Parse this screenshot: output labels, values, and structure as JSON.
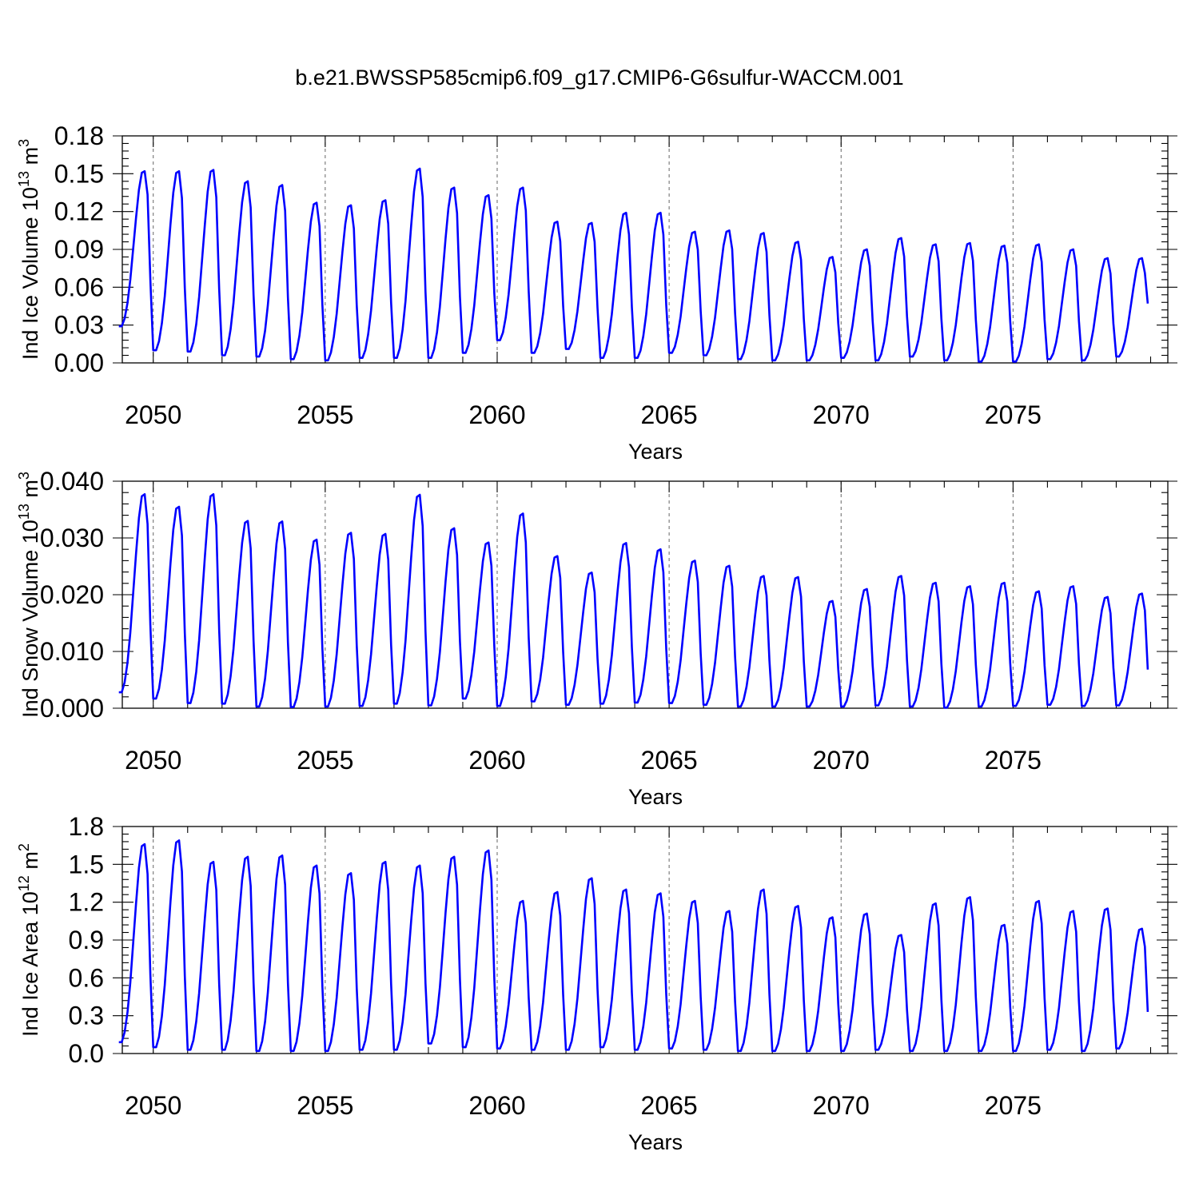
{
  "figure": {
    "title": "b.e21.BWSSP585cmip6.f09_g17.CMIP6-G6sulfur-WACCM.001"
  },
  "chart_data": [
    {
      "type": "line",
      "ylabel": "Ind Ice Volume 10",
      "ylabel_exponent": "13",
      "ylabel_unit": " m",
      "ylabel_unit_exponent": "3",
      "xlabel": "Years",
      "xlim": [
        2049.1,
        2079.5
      ],
      "ylim": [
        0,
        0.18
      ],
      "yticks": [
        "0.00",
        "0.03",
        "0.06",
        "0.09",
        "0.12",
        "0.15",
        "0.18"
      ],
      "xticks": [
        "2050",
        "2055",
        "2060",
        "2065",
        "2070",
        "2075"
      ],
      "year_gridlines": [
        2050,
        2055,
        2060,
        2065,
        2070,
        2075
      ],
      "color": "#0000ff",
      "start_month": "2049-01",
      "peaks": [
        0.152,
        0.152,
        0.153,
        0.144,
        0.141,
        0.127,
        0.125,
        0.129,
        0.154,
        0.139,
        0.133,
        0.139,
        0.112,
        0.111,
        0.119,
        0.119,
        0.104,
        0.105,
        0.103,
        0.096,
        0.084,
        0.09,
        0.099,
        0.094,
        0.095,
        0.093,
        0.094,
        0.09,
        0.083,
        0.083
      ],
      "troughs": [
        0.029,
        0.01,
        0.009,
        0.006,
        0.005,
        0.003,
        0.002,
        0.004,
        0.004,
        0.004,
        0.008,
        0.018,
        0.008,
        0.011,
        0.004,
        0.004,
        0.008,
        0.006,
        0.003,
        0.002,
        0.002,
        0.004,
        0.002,
        0.005,
        0.002,
        0.001,
        0.001,
        0.003,
        0.002,
        0.005
      ],
      "end_value": 0.047
    },
    {
      "type": "line",
      "ylabel": "Ind Snow Volume 10",
      "ylabel_exponent": "13",
      "ylabel_unit": " m",
      "ylabel_unit_exponent": "3",
      "xlabel": "Years",
      "xlim": [
        2049.1,
        2079.5
      ],
      "ylim": [
        0,
        0.04
      ],
      "yticks": [
        "0.000",
        "0.010",
        "0.020",
        "0.030",
        "0.040"
      ],
      "xticks": [
        "2050",
        "2055",
        "2060",
        "2065",
        "2070",
        "2075"
      ],
      "year_gridlines": [
        2050,
        2055,
        2060,
        2065,
        2070,
        2075
      ],
      "color": "#0000ff",
      "start_month": "2049-01",
      "peaks": [
        0.0377,
        0.0355,
        0.0377,
        0.033,
        0.0329,
        0.0297,
        0.0309,
        0.0307,
        0.0376,
        0.0317,
        0.0292,
        0.0343,
        0.0268,
        0.0239,
        0.0291,
        0.028,
        0.026,
        0.0251,
        0.0233,
        0.0231,
        0.0189,
        0.021,
        0.0233,
        0.0221,
        0.0215,
        0.0221,
        0.0206,
        0.0215,
        0.0196,
        0.0202
      ],
      "troughs": [
        0.0028,
        0.0017,
        0.0009,
        0.0008,
        0.0003,
        0.0002,
        0.0003,
        0.0004,
        0.0008,
        0.0005,
        0.0017,
        0.0004,
        0.0012,
        0.0006,
        0.0008,
        0.001,
        0.0009,
        0.0006,
        0.0003,
        0.0003,
        0.0003,
        0.0003,
        0.0005,
        0.0003,
        0.0001,
        0.0003,
        0.0004,
        0.0006,
        0.0004,
        0.0005
      ],
      "end_value": 0.0068
    },
    {
      "type": "line",
      "ylabel": "Ind Ice Area 10",
      "ylabel_exponent": "12",
      "ylabel_unit": " m",
      "ylabel_unit_exponent": "2",
      "xlabel": "Years",
      "xlim": [
        2049.1,
        2079.5
      ],
      "ylim": [
        0,
        1.8
      ],
      "yticks": [
        "0.0",
        "0.3",
        "0.6",
        "0.9",
        "1.2",
        "1.5",
        "1.8"
      ],
      "xticks": [
        "2050",
        "2055",
        "2060",
        "2065",
        "2070",
        "2075"
      ],
      "year_gridlines": [
        2050,
        2055,
        2060,
        2065,
        2070,
        2075
      ],
      "color": "#0000ff",
      "start_month": "2049-01",
      "peaks": [
        1.66,
        1.69,
        1.52,
        1.56,
        1.57,
        1.49,
        1.43,
        1.52,
        1.49,
        1.56,
        1.61,
        1.21,
        1.28,
        1.39,
        1.3,
        1.27,
        1.21,
        1.13,
        1.3,
        1.17,
        1.08,
        1.11,
        0.94,
        1.19,
        1.24,
        1.02,
        1.21,
        1.13,
        1.15,
        0.99
      ],
      "troughs": [
        0.09,
        0.05,
        0.03,
        0.03,
        0.02,
        0.02,
        0.02,
        0.03,
        0.03,
        0.08,
        0.05,
        0.04,
        0.03,
        0.03,
        0.05,
        0.03,
        0.04,
        0.03,
        0.02,
        0.02,
        0.02,
        0.02,
        0.03,
        0.02,
        0.02,
        0.02,
        0.02,
        0.03,
        0.02,
        0.04
      ],
      "end_value": 0.33
    }
  ]
}
